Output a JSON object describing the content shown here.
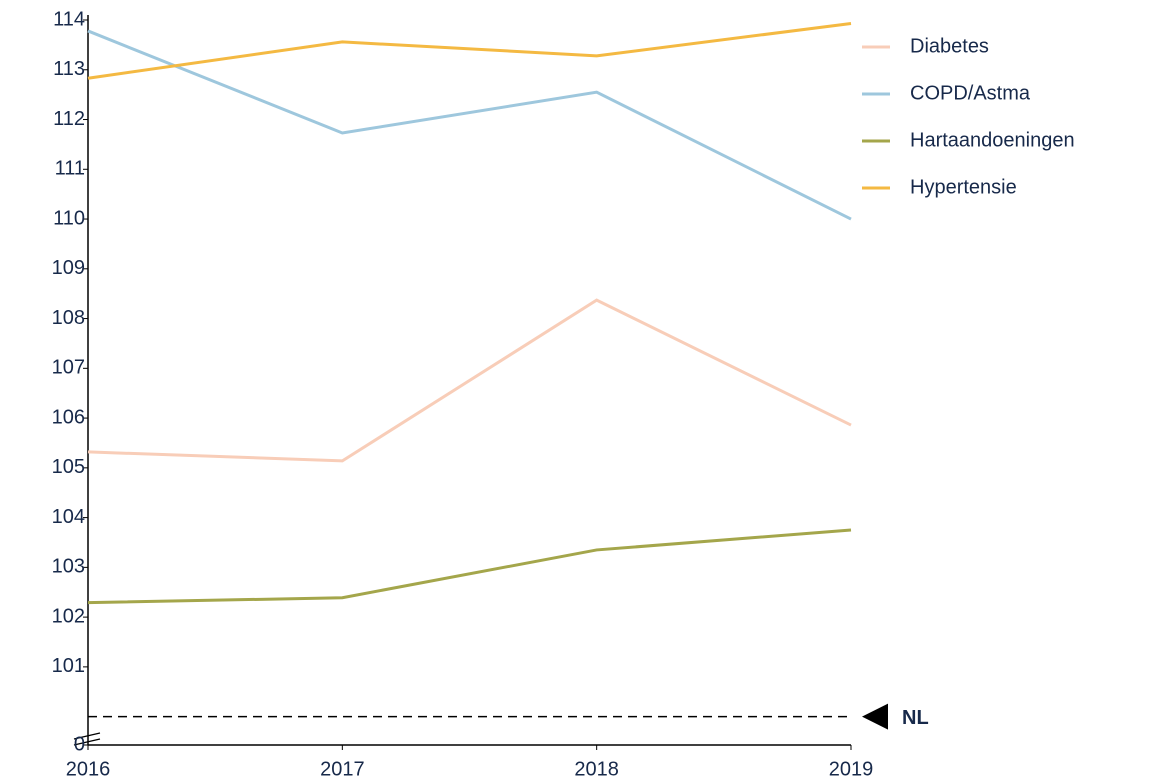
{
  "chart_data": {
    "type": "line",
    "categories": [
      "2016",
      "2017",
      "2018",
      "2019"
    ],
    "series": [
      {
        "name": "Diabetes",
        "color": "#f8cdb8",
        "values": [
          105.32,
          105.14,
          108.37,
          105.86
        ]
      },
      {
        "name": "COPD/Astma",
        "color": "#9ec7dd",
        "values": [
          113.78,
          111.73,
          112.55,
          110.0
        ]
      },
      {
        "name": "Hartaandoeningen",
        "color": "#a4a64b",
        "values": [
          102.29,
          102.39,
          103.35,
          103.75
        ]
      },
      {
        "name": "Hypertensie",
        "color": "#f4b942",
        "values": [
          112.83,
          113.56,
          113.28,
          113.93
        ]
      }
    ],
    "ylim": [
      99.43,
      114
    ],
    "yticks": [
      0,
      101,
      102,
      103,
      104,
      105,
      106,
      107,
      108,
      109,
      110,
      111,
      112,
      113,
      114
    ],
    "axis_break": true,
    "reference_line": {
      "value": 100,
      "label": "NL"
    },
    "legend": "top-right"
  }
}
